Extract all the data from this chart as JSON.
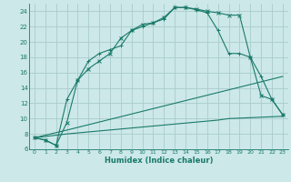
{
  "xlabel": "Humidex (Indice chaleur)",
  "bg_color": "#cce8e8",
  "grid_color": "#aacccc",
  "line_color": "#1a7a6a",
  "xlim": [
    -0.5,
    23.5
  ],
  "ylim": [
    6,
    25
  ],
  "yticks": [
    6,
    8,
    10,
    12,
    14,
    16,
    18,
    20,
    22,
    24
  ],
  "xticks": [
    0,
    1,
    2,
    3,
    4,
    5,
    6,
    7,
    8,
    9,
    10,
    11,
    12,
    13,
    14,
    15,
    16,
    17,
    18,
    19,
    20,
    21,
    22,
    23
  ],
  "line1_x": [
    0,
    1,
    2,
    3,
    4,
    5,
    6,
    7,
    8,
    9,
    10,
    11,
    12,
    13,
    14,
    15,
    16,
    17,
    18,
    19,
    20,
    21,
    22,
    23
  ],
  "line1_y": [
    7.5,
    7.2,
    6.5,
    9.5,
    15.0,
    16.5,
    17.5,
    18.5,
    20.5,
    21.5,
    22.3,
    22.5,
    23.2,
    24.5,
    24.5,
    24.3,
    24.0,
    23.8,
    23.5,
    23.5,
    18.0,
    13.0,
    12.5,
    10.5
  ],
  "line2_x": [
    0,
    1,
    2,
    3,
    4,
    5,
    6,
    7,
    8,
    9,
    10,
    11,
    12,
    13,
    14,
    15,
    16,
    17,
    18,
    19,
    20,
    21,
    22,
    23
  ],
  "line2_y": [
    7.5,
    7.2,
    6.5,
    12.5,
    15.0,
    17.5,
    18.5,
    19.0,
    19.5,
    21.5,
    22.0,
    22.5,
    23.0,
    24.5,
    24.5,
    24.2,
    23.8,
    21.5,
    18.5,
    18.5,
    18.0,
    15.5,
    12.5,
    10.5
  ],
  "line3_x": [
    0,
    3,
    23
  ],
  "line3_y": [
    7.5,
    8.5,
    15.5
  ],
  "line4_x": [
    0,
    3,
    17,
    18,
    23
  ],
  "line4_y": [
    7.5,
    8.0,
    9.8,
    10.0,
    10.3
  ]
}
